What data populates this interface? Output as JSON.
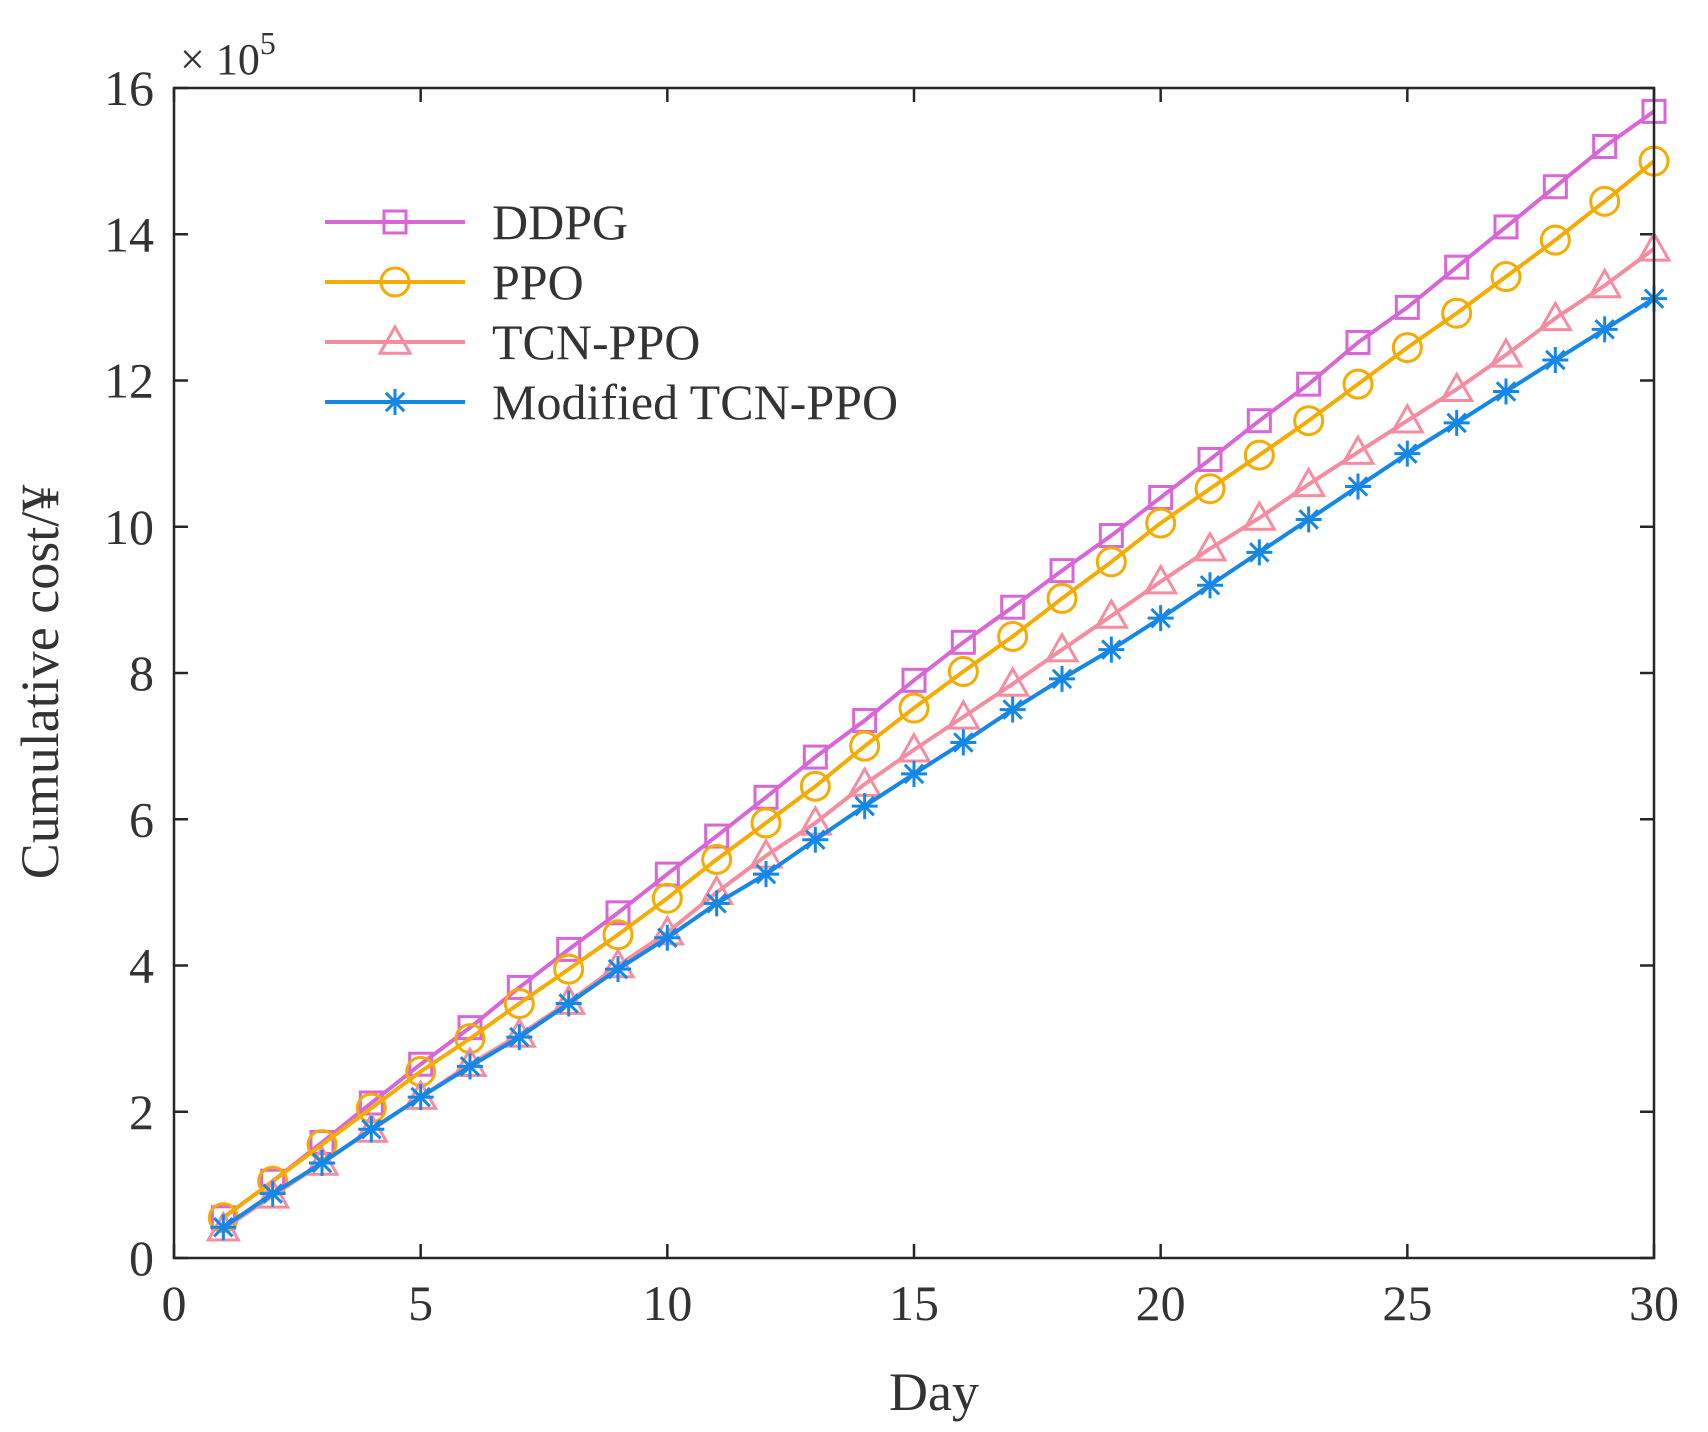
{
  "chart_data": {
    "type": "line",
    "title": "",
    "xlabel": "Day",
    "ylabel": "Cumulative cost/¥",
    "exponent_label": "× 10",
    "exponent_power": "5",
    "xlim": [
      0,
      30
    ],
    "ylim": [
      0,
      16
    ],
    "xticks": [
      0,
      5,
      10,
      15,
      20,
      25,
      30
    ],
    "yticks": [
      0,
      2,
      4,
      6,
      8,
      10,
      12,
      14,
      16
    ],
    "grid": false,
    "legend_position": "upper-left",
    "x": [
      1,
      2,
      3,
      4,
      5,
      6,
      7,
      8,
      9,
      10,
      11,
      12,
      13,
      14,
      15,
      16,
      17,
      18,
      19,
      20,
      21,
      22,
      23,
      24,
      25,
      26,
      27,
      28,
      29,
      30
    ],
    "series": [
      {
        "name": "DDPG",
        "color": "#d966d6",
        "marker": "square",
        "values": [
          0.55,
          1.05,
          1.58,
          2.12,
          2.65,
          3.15,
          3.7,
          4.22,
          4.72,
          5.25,
          5.77,
          6.3,
          6.85,
          7.35,
          7.9,
          8.42,
          8.9,
          9.4,
          9.88,
          10.4,
          10.92,
          11.45,
          11.95,
          12.52,
          13.0,
          13.55,
          14.1,
          14.65,
          15.2,
          15.68
        ]
      },
      {
        "name": "PPO",
        "color": "#f5ab00",
        "marker": "circle",
        "values": [
          0.55,
          1.05,
          1.55,
          2.05,
          2.55,
          3.0,
          3.48,
          3.95,
          4.42,
          4.92,
          5.45,
          5.95,
          6.45,
          7.0,
          7.52,
          8.02,
          8.5,
          9.02,
          9.52,
          10.05,
          10.52,
          10.98,
          11.45,
          11.95,
          12.45,
          12.92,
          13.42,
          13.92,
          14.45,
          15.0
        ]
      },
      {
        "name": "TCN-PPO",
        "color": "#f58ca0",
        "marker": "triangle",
        "values": [
          0.4,
          0.85,
          1.3,
          1.75,
          2.2,
          2.65,
          3.05,
          3.5,
          4.0,
          4.45,
          5.0,
          5.5,
          5.95,
          6.48,
          6.95,
          7.4,
          7.85,
          8.32,
          8.78,
          9.25,
          9.7,
          10.12,
          10.58,
          11.02,
          11.45,
          11.88,
          12.35,
          12.85,
          13.3,
          13.8
        ]
      },
      {
        "name": "Modified TCN-PPO",
        "color": "#1587e6",
        "marker": "asterisk",
        "values": [
          0.42,
          0.88,
          1.3,
          1.76,
          2.2,
          2.62,
          3.02,
          3.48,
          3.95,
          4.38,
          4.85,
          5.25,
          5.72,
          6.18,
          6.62,
          7.05,
          7.5,
          7.92,
          8.32,
          8.75,
          9.2,
          9.65,
          10.1,
          10.55,
          11.0,
          11.42,
          11.85,
          12.28,
          12.7,
          13.12
        ]
      }
    ]
  }
}
